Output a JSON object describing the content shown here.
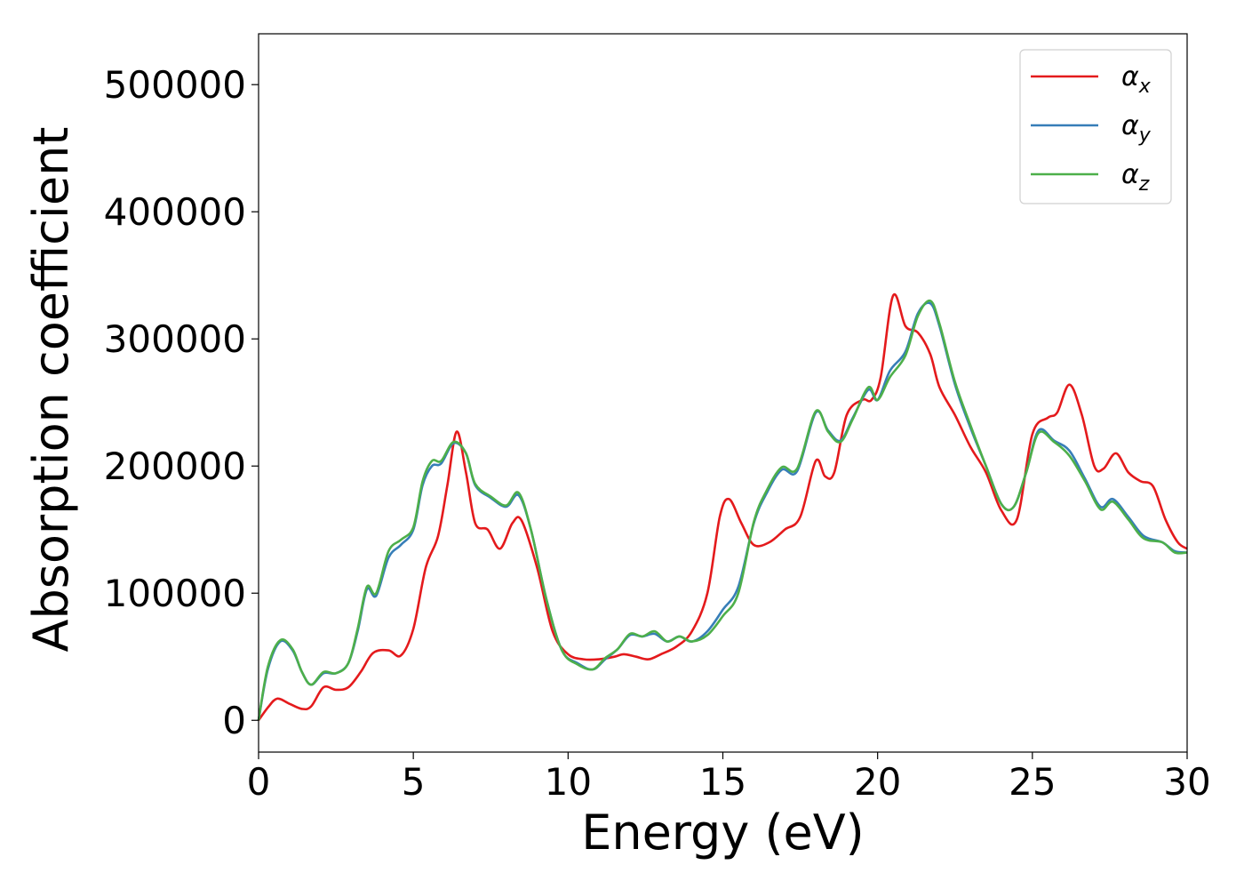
{
  "chart_data": {
    "type": "line",
    "title": "",
    "xlabel": "Energy (eV)",
    "ylabel": "Absorption coefficient",
    "xlim": [
      0,
      30
    ],
    "ylim": [
      -25000,
      540000
    ],
    "xticks": [
      0,
      5,
      10,
      15,
      20,
      25,
      30
    ],
    "yticks": [
      0,
      100000,
      200000,
      300000,
      400000,
      500000
    ],
    "xtick_labels": [
      "0",
      "5",
      "10",
      "15",
      "20",
      "25",
      "30"
    ],
    "ytick_labels": [
      "0",
      "100000",
      "200000",
      "300000",
      "400000",
      "500000"
    ],
    "grid": false,
    "legend_position": "top-right",
    "series": [
      {
        "name": "α_x",
        "color": "#e41a1c",
        "points": [
          [
            0,
            0
          ],
          [
            0.3,
            10000
          ],
          [
            0.6,
            17000
          ],
          [
            1.0,
            13000
          ],
          [
            1.4,
            9000
          ],
          [
            1.7,
            11000
          ],
          [
            2.1,
            26000
          ],
          [
            2.5,
            24000
          ],
          [
            2.9,
            26000
          ],
          [
            3.3,
            38000
          ],
          [
            3.7,
            53000
          ],
          [
            4.2,
            55000
          ],
          [
            4.6,
            51000
          ],
          [
            5.0,
            72000
          ],
          [
            5.4,
            120000
          ],
          [
            5.8,
            145000
          ],
          [
            6.1,
            185000
          ],
          [
            6.4,
            227000
          ],
          [
            6.7,
            195000
          ],
          [
            7.0,
            155000
          ],
          [
            7.4,
            150000
          ],
          [
            7.8,
            135000
          ],
          [
            8.2,
            155000
          ],
          [
            8.5,
            157000
          ],
          [
            9.0,
            120000
          ],
          [
            9.5,
            70000
          ],
          [
            10.0,
            52000
          ],
          [
            10.5,
            48000
          ],
          [
            11.0,
            48000
          ],
          [
            11.5,
            50000
          ],
          [
            11.8,
            52000
          ],
          [
            12.2,
            50000
          ],
          [
            12.6,
            48000
          ],
          [
            13.0,
            52000
          ],
          [
            13.5,
            58000
          ],
          [
            14.0,
            70000
          ],
          [
            14.5,
            100000
          ],
          [
            14.9,
            160000
          ],
          [
            15.2,
            174000
          ],
          [
            15.6,
            155000
          ],
          [
            16.0,
            138000
          ],
          [
            16.5,
            140000
          ],
          [
            17.0,
            150000
          ],
          [
            17.5,
            160000
          ],
          [
            18.0,
            204000
          ],
          [
            18.3,
            192000
          ],
          [
            18.6,
            195000
          ],
          [
            19.0,
            240000
          ],
          [
            19.5,
            252000
          ],
          [
            19.8,
            252000
          ],
          [
            20.1,
            270000
          ],
          [
            20.5,
            334000
          ],
          [
            20.9,
            310000
          ],
          [
            21.3,
            305000
          ],
          [
            21.7,
            288000
          ],
          [
            22.0,
            262000
          ],
          [
            22.5,
            240000
          ],
          [
            23.0,
            215000
          ],
          [
            23.5,
            195000
          ],
          [
            24.0,
            165000
          ],
          [
            24.5,
            158000
          ],
          [
            25.0,
            225000
          ],
          [
            25.5,
            238000
          ],
          [
            25.8,
            242000
          ],
          [
            26.2,
            264000
          ],
          [
            26.6,
            240000
          ],
          [
            27.0,
            200000
          ],
          [
            27.3,
            198000
          ],
          [
            27.7,
            210000
          ],
          [
            28.1,
            195000
          ],
          [
            28.5,
            188000
          ],
          [
            28.9,
            184000
          ],
          [
            29.3,
            158000
          ],
          [
            29.7,
            140000
          ],
          [
            30.0,
            135000
          ]
        ]
      },
      {
        "name": "α_y",
        "color": "#377eb8",
        "points": [
          [
            0,
            0
          ],
          [
            0.3,
            40000
          ],
          [
            0.7,
            62000
          ],
          [
            1.1,
            55000
          ],
          [
            1.4,
            38000
          ],
          [
            1.7,
            28000
          ],
          [
            2.1,
            37000
          ],
          [
            2.5,
            37000
          ],
          [
            2.9,
            45000
          ],
          [
            3.2,
            70000
          ],
          [
            3.5,
            103000
          ],
          [
            3.8,
            98000
          ],
          [
            4.2,
            128000
          ],
          [
            4.6,
            138000
          ],
          [
            5.0,
            150000
          ],
          [
            5.3,
            185000
          ],
          [
            5.6,
            200000
          ],
          [
            5.9,
            202000
          ],
          [
            6.3,
            218000
          ],
          [
            6.7,
            210000
          ],
          [
            7.0,
            185000
          ],
          [
            7.5,
            175000
          ],
          [
            8.0,
            168000
          ],
          [
            8.4,
            177000
          ],
          [
            8.8,
            150000
          ],
          [
            9.3,
            95000
          ],
          [
            9.8,
            55000
          ],
          [
            10.3,
            45000
          ],
          [
            10.8,
            40000
          ],
          [
            11.2,
            48000
          ],
          [
            11.6,
            56000
          ],
          [
            12.0,
            67000
          ],
          [
            12.4,
            66000
          ],
          [
            12.8,
            68000
          ],
          [
            13.2,
            62000
          ],
          [
            13.6,
            66000
          ],
          [
            14.0,
            62000
          ],
          [
            14.5,
            70000
          ],
          [
            15.0,
            87000
          ],
          [
            15.5,
            105000
          ],
          [
            16.0,
            155000
          ],
          [
            16.4,
            178000
          ],
          [
            16.9,
            197000
          ],
          [
            17.4,
            196000
          ],
          [
            18.0,
            242000
          ],
          [
            18.4,
            228000
          ],
          [
            18.8,
            220000
          ],
          [
            19.2,
            238000
          ],
          [
            19.7,
            260000
          ],
          [
            20.0,
            252000
          ],
          [
            20.4,
            275000
          ],
          [
            20.9,
            290000
          ],
          [
            21.3,
            320000
          ],
          [
            21.7,
            328000
          ],
          [
            22.0,
            310000
          ],
          [
            22.5,
            264000
          ],
          [
            23.0,
            230000
          ],
          [
            23.5,
            200000
          ],
          [
            24.0,
            170000
          ],
          [
            24.4,
            168000
          ],
          [
            24.8,
            195000
          ],
          [
            25.2,
            228000
          ],
          [
            25.7,
            220000
          ],
          [
            26.2,
            212000
          ],
          [
            26.7,
            190000
          ],
          [
            27.2,
            168000
          ],
          [
            27.6,
            174000
          ],
          [
            28.1,
            160000
          ],
          [
            28.6,
            145000
          ],
          [
            29.2,
            140000
          ],
          [
            29.6,
            133000
          ],
          [
            30.0,
            132000
          ]
        ]
      },
      {
        "name": "α_z",
        "color": "#4daf4a",
        "points": [
          [
            0,
            0
          ],
          [
            0.3,
            42000
          ],
          [
            0.7,
            63000
          ],
          [
            1.1,
            56000
          ],
          [
            1.4,
            38000
          ],
          [
            1.7,
            28000
          ],
          [
            2.1,
            38000
          ],
          [
            2.5,
            37000
          ],
          [
            2.9,
            45000
          ],
          [
            3.2,
            72000
          ],
          [
            3.5,
            105000
          ],
          [
            3.8,
            100000
          ],
          [
            4.2,
            133000
          ],
          [
            4.6,
            142000
          ],
          [
            5.0,
            152000
          ],
          [
            5.3,
            188000
          ],
          [
            5.6,
            204000
          ],
          [
            5.9,
            204000
          ],
          [
            6.3,
            219000
          ],
          [
            6.7,
            210000
          ],
          [
            7.0,
            186000
          ],
          [
            7.5,
            176000
          ],
          [
            8.0,
            169000
          ],
          [
            8.4,
            179000
          ],
          [
            8.8,
            150000
          ],
          [
            9.3,
            95000
          ],
          [
            9.8,
            55000
          ],
          [
            10.3,
            44000
          ],
          [
            10.8,
            40000
          ],
          [
            11.2,
            49000
          ],
          [
            11.6,
            56000
          ],
          [
            12.0,
            68000
          ],
          [
            12.4,
            66000
          ],
          [
            12.8,
            70000
          ],
          [
            13.2,
            62000
          ],
          [
            13.6,
            66000
          ],
          [
            14.0,
            62000
          ],
          [
            14.5,
            67000
          ],
          [
            15.0,
            82000
          ],
          [
            15.5,
            100000
          ],
          [
            16.0,
            156000
          ],
          [
            16.4,
            180000
          ],
          [
            16.9,
            199000
          ],
          [
            17.4,
            198000
          ],
          [
            18.0,
            243000
          ],
          [
            18.4,
            227000
          ],
          [
            18.8,
            219000
          ],
          [
            19.2,
            237000
          ],
          [
            19.7,
            262000
          ],
          [
            20.0,
            252000
          ],
          [
            20.4,
            270000
          ],
          [
            20.9,
            287000
          ],
          [
            21.3,
            318000
          ],
          [
            21.7,
            330000
          ],
          [
            22.0,
            312000
          ],
          [
            22.5,
            266000
          ],
          [
            23.0,
            232000
          ],
          [
            23.5,
            200000
          ],
          [
            24.0,
            170000
          ],
          [
            24.4,
            168000
          ],
          [
            24.8,
            195000
          ],
          [
            25.2,
            226000
          ],
          [
            25.7,
            219000
          ],
          [
            26.2,
            208000
          ],
          [
            26.7,
            188000
          ],
          [
            27.2,
            166000
          ],
          [
            27.6,
            172000
          ],
          [
            28.1,
            158000
          ],
          [
            28.6,
            143000
          ],
          [
            29.2,
            140000
          ],
          [
            29.6,
            132000
          ],
          [
            30.0,
            132000
          ]
        ]
      }
    ]
  }
}
